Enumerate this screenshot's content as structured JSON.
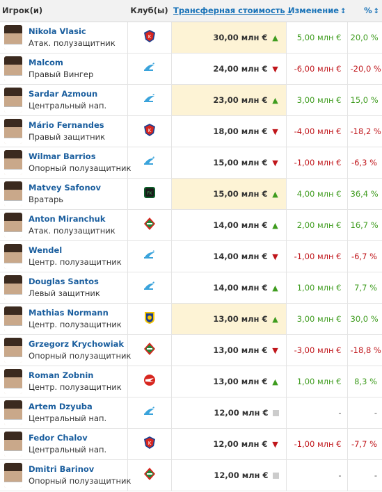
{
  "header": {
    "player": "Игрок(и)",
    "club": "Клуб(ы)",
    "value": "Трансферная стоимость",
    "change": "Изменение",
    "pct": "%"
  },
  "colors": {
    "link": "#1a5e9e",
    "positive": "#3f9c1f",
    "negative": "#c0161b",
    "highlight": "#fdf3d5"
  },
  "rows": [
    {
      "name": "Nikola Vlasic",
      "position": "Атак. полузащитник",
      "club_icon": "cska-crest-icon",
      "value": "30,00 млн €",
      "trend": "up",
      "change": "5,00 млн €",
      "pct": "20,0 %",
      "highlight": true
    },
    {
      "name": "Malcom",
      "position": "Правый Вингер",
      "club_icon": "zenit-crest-icon",
      "value": "24,00 млн €",
      "trend": "down",
      "change": "-6,00 млн €",
      "pct": "-20,0 %",
      "highlight": false
    },
    {
      "name": "Sardar Azmoun",
      "position": "Центральный нап.",
      "club_icon": "zenit-crest-icon",
      "value": "23,00 млн €",
      "trend": "up",
      "change": "3,00 млн €",
      "pct": "15,0 %",
      "highlight": true
    },
    {
      "name": "Mário Fernandes",
      "position": "Правый защитник",
      "club_icon": "cska-crest-icon",
      "value": "18,00 млн €",
      "trend": "down",
      "change": "-4,00 млн €",
      "pct": "-18,2 %",
      "highlight": false
    },
    {
      "name": "Wilmar Barrios",
      "position": "Опорный полузащитник",
      "club_icon": "zenit-crest-icon",
      "value": "15,00 млн €",
      "trend": "down",
      "change": "-1,00 млн €",
      "pct": "-6,3 %",
      "highlight": false
    },
    {
      "name": "Matvey Safonov",
      "position": "Вратарь",
      "club_icon": "krasnodar-crest-icon",
      "value": "15,00 млн €",
      "trend": "up",
      "change": "4,00 млн €",
      "pct": "36,4 %",
      "highlight": true
    },
    {
      "name": "Anton Miranchuk",
      "position": "Атак. полузащитник",
      "club_icon": "lokomotiv-crest-icon",
      "value": "14,00 млн €",
      "trend": "up",
      "change": "2,00 млн €",
      "pct": "16,7 %",
      "highlight": false
    },
    {
      "name": "Wendel",
      "position": "Центр. полузащитник",
      "club_icon": "zenit-crest-icon",
      "value": "14,00 млн €",
      "trend": "down",
      "change": "-1,00 млн €",
      "pct": "-6,7 %",
      "highlight": false
    },
    {
      "name": "Douglas Santos",
      "position": "Левый защитник",
      "club_icon": "zenit-crest-icon",
      "value": "14,00 млн €",
      "trend": "up",
      "change": "1,00 млн €",
      "pct": "7,7 %",
      "highlight": false
    },
    {
      "name": "Mathias Normann",
      "position": "Центр. полузащитник",
      "club_icon": "rostov-crest-icon",
      "value": "13,00 млн €",
      "trend": "up",
      "change": "3,00 млн €",
      "pct": "30,0 %",
      "highlight": true
    },
    {
      "name": "Grzegorz Krychowiak",
      "position": "Опорный полузащитник",
      "club_icon": "lokomotiv-crest-icon",
      "value": "13,00 млн €",
      "trend": "down",
      "change": "-3,00 млн €",
      "pct": "-18,8 %",
      "highlight": false
    },
    {
      "name": "Roman Zobnin",
      "position": "Центр. полузащитник",
      "club_icon": "spartak-crest-icon",
      "value": "13,00 млн €",
      "trend": "up",
      "change": "1,00 млн €",
      "pct": "8,3 %",
      "highlight": false
    },
    {
      "name": "Artem Dzyuba",
      "position": "Центральный нап.",
      "club_icon": "zenit-crest-icon",
      "value": "12,00 млн €",
      "trend": "neutral",
      "change": "-",
      "pct": "-",
      "highlight": false
    },
    {
      "name": "Fedor Chalov",
      "position": "Центральный нап.",
      "club_icon": "cska-crest-icon",
      "value": "12,00 млн €",
      "trend": "down",
      "change": "-1,00 млн €",
      "pct": "-7,7 %",
      "highlight": false
    },
    {
      "name": "Dmitri Barinov",
      "position": "Опорный полузащитник",
      "club_icon": "lokomotiv-crest-icon",
      "value": "12,00 млн €",
      "trend": "neutral",
      "change": "-",
      "pct": "-",
      "highlight": false
    }
  ]
}
